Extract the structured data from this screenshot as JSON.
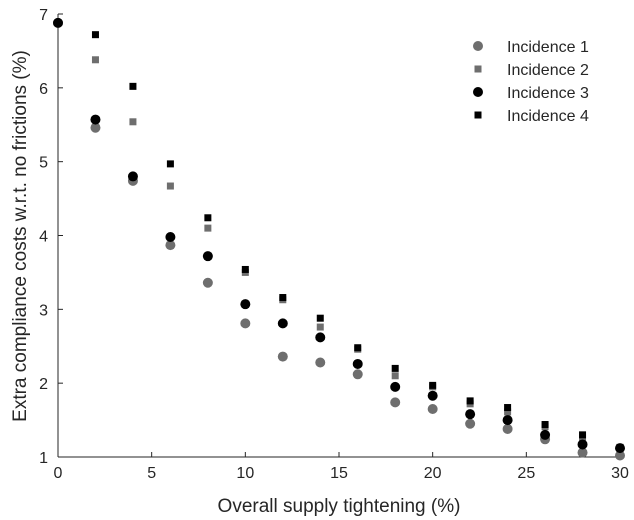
{
  "chart_data": {
    "type": "scatter",
    "xlabel": "Overall supply tightening (%)",
    "ylabel": "Extra compliance costs w.r.t. no frictions (%)",
    "xlim": [
      0,
      30
    ],
    "ylim": [
      1,
      7
    ],
    "xticks": [
      0,
      5,
      10,
      15,
      20,
      25,
      30
    ],
    "yticks": [
      1,
      2,
      3,
      4,
      5,
      6,
      7
    ],
    "grid": false,
    "legend_position": "top-right",
    "series": [
      {
        "name": "Incidence 1",
        "marker": "circle",
        "color": "#6e6e6e",
        "x": [
          0,
          2,
          4,
          6,
          8,
          10,
          12,
          14,
          16,
          18,
          20,
          22,
          24,
          26,
          28,
          30
        ],
        "y": [
          6.88,
          5.46,
          4.74,
          3.87,
          3.36,
          2.81,
          2.36,
          2.28,
          2.12,
          1.74,
          1.65,
          1.45,
          1.38,
          1.24,
          1.06,
          1.02
        ]
      },
      {
        "name": "Incidence 2",
        "marker": "square",
        "color": "#6e6e6e",
        "x": [
          0,
          2,
          4,
          6,
          8,
          10,
          12,
          14,
          16,
          18,
          20,
          22,
          24,
          26,
          28,
          30
        ],
        "y": [
          6.88,
          6.38,
          5.54,
          4.67,
          4.1,
          3.5,
          3.13,
          2.76,
          2.46,
          2.1,
          1.95,
          1.72,
          1.61,
          1.41,
          1.26,
          1.1
        ]
      },
      {
        "name": "Incidence 3",
        "marker": "circle",
        "color": "#000000",
        "x": [
          0,
          2,
          4,
          6,
          8,
          10,
          12,
          14,
          16,
          18,
          20,
          22,
          24,
          26,
          28,
          30
        ],
        "y": [
          6.88,
          5.57,
          4.8,
          3.98,
          3.72,
          3.07,
          2.81,
          2.62,
          2.26,
          1.95,
          1.83,
          1.58,
          1.5,
          1.3,
          1.17,
          1.12
        ]
      },
      {
        "name": "Incidence 4",
        "marker": "square",
        "color": "#000000",
        "x": [
          0,
          2,
          4,
          6,
          8,
          10,
          12,
          14,
          16,
          18,
          20,
          22,
          24,
          26,
          28,
          30
        ],
        "y": [
          6.88,
          6.72,
          6.02,
          4.97,
          4.24,
          3.54,
          3.16,
          2.88,
          2.48,
          2.2,
          1.97,
          1.76,
          1.67,
          1.44,
          1.3,
          1.13
        ]
      }
    ]
  }
}
